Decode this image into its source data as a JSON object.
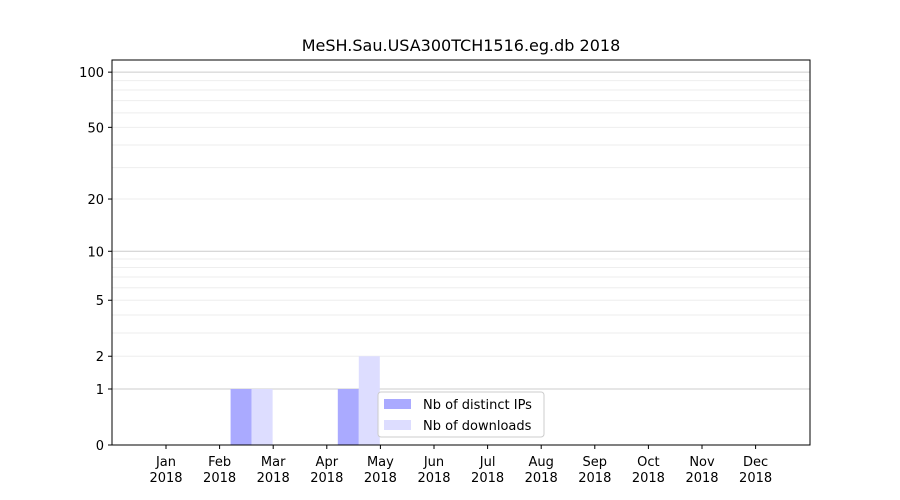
{
  "chart_data": {
    "type": "bar",
    "title": "MeSH.Sau.USA300TCH1516.eg.db 2018",
    "xlabel": "",
    "ylabel": "",
    "y_scale": "log(1+y)",
    "ylim": [
      0,
      120
    ],
    "categories": [
      [
        "Jan",
        "2018"
      ],
      [
        "Feb",
        "2018"
      ],
      [
        "Mar",
        "2018"
      ],
      [
        "Apr",
        "2018"
      ],
      [
        "May",
        "2018"
      ],
      [
        "Jun",
        "2018"
      ],
      [
        "Jul",
        "2018"
      ],
      [
        "Aug",
        "2018"
      ],
      [
        "Sep",
        "2018"
      ],
      [
        "Oct",
        "2018"
      ],
      [
        "Nov",
        "2018"
      ],
      [
        "Dec",
        "2018"
      ]
    ],
    "y_ticks": [
      {
        "value": 0,
        "label": "0"
      },
      {
        "value": 1,
        "label": "1"
      },
      {
        "value": 2,
        "label": "2"
      },
      {
        "value": 5,
        "label": "5"
      },
      {
        "value": 10,
        "label": "10"
      },
      {
        "value": 20,
        "label": "20"
      },
      {
        "value": 50,
        "label": "50"
      },
      {
        "value": 100,
        "label": "100"
      }
    ],
    "major_gridlines": [
      1,
      10,
      100
    ],
    "minor_gridlines": [
      2,
      3,
      4,
      5,
      6,
      7,
      8,
      9,
      20,
      30,
      40,
      50,
      60,
      70,
      80,
      90
    ],
    "series": [
      {
        "name": "Nb of distinct IPs",
        "color": "#aaaaff",
        "values": [
          0,
          1,
          0,
          1,
          0,
          0,
          0,
          0,
          0,
          0,
          0,
          0
        ]
      },
      {
        "name": "Nb of downloads",
        "color": "#ddddff",
        "values": [
          0,
          1,
          0,
          2,
          0,
          0,
          0,
          0,
          0,
          0,
          0,
          0
        ]
      }
    ],
    "legend_position": "lower-center",
    "grid": true
  }
}
